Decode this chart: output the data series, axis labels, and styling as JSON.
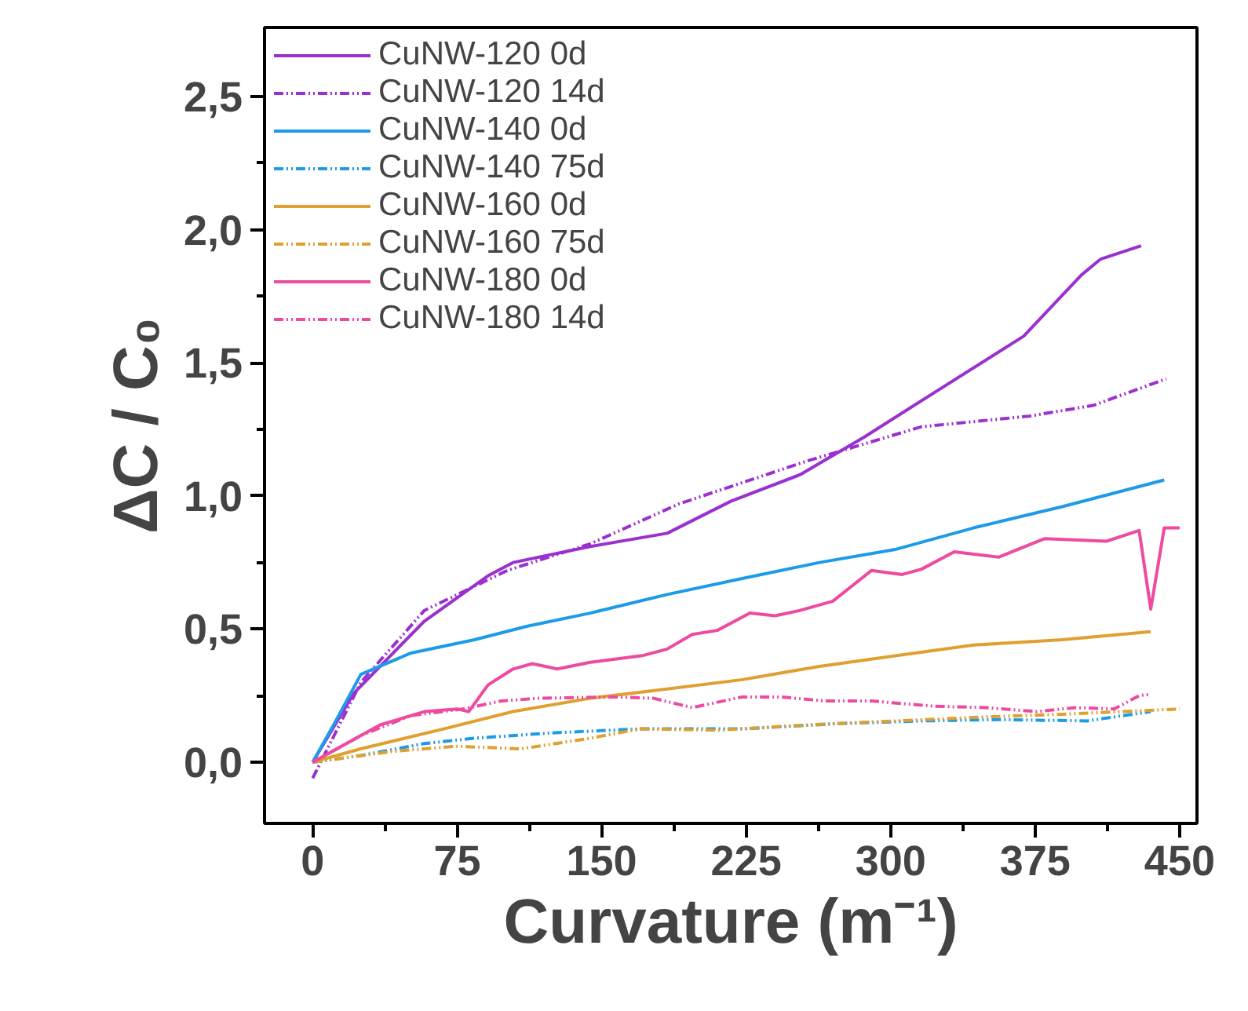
{
  "chart_data": {
    "type": "line",
    "xlabel": "Curvature (m⁻¹)",
    "ylabel": "ΔC / C₀",
    "xlim": [
      -25,
      459
    ],
    "ylim": [
      -0.23,
      2.76
    ],
    "xticks": [
      0,
      {
        "value": 37.5,
        "label": null
      },
      75,
      {
        "value": 112.5,
        "label": null
      },
      150,
      {
        "value": 187.5,
        "label": null
      },
      225,
      {
        "value": 262.5,
        "label": null
      },
      300,
      {
        "value": 337.5,
        "label": null
      },
      375,
      {
        "value": 412.5,
        "label": null
      },
      450
    ],
    "yticks": [
      {
        "value": 0,
        "label": "0,0"
      },
      {
        "value": 0.25,
        "label": null
      },
      {
        "value": 0.5,
        "label": "0,5"
      },
      {
        "value": 0.75,
        "label": null
      },
      {
        "value": 1.0,
        "label": "1,0"
      },
      {
        "value": 1.25,
        "label": null
      },
      {
        "value": 1.5,
        "label": "1,5"
      },
      {
        "value": 1.75,
        "label": null
      },
      {
        "value": 2.0,
        "label": "2,0"
      },
      {
        "value": 2.25,
        "label": null
      },
      {
        "value": 2.5,
        "label": "2,5"
      }
    ],
    "grid": false,
    "legend": "top left",
    "series": [
      {
        "name": "CuNW-120 0d",
        "color": "#9b30d0",
        "line_style": "solid",
        "x": [
          0,
          21.5,
          58,
          91,
          104,
          144,
          184,
          217,
          253,
          286,
          323,
          369,
          399,
          409,
          430
        ],
        "values": [
          0,
          0.26,
          0.53,
          0.7,
          0.75,
          0.81,
          0.86,
          0.98,
          1.08,
          1.22,
          1.39,
          1.6,
          1.83,
          1.89,
          1.94
        ]
      },
      {
        "name": "CuNW-120 14d",
        "color": "#9b30d0",
        "line_style": "dashed",
        "x": [
          0,
          25,
          58,
          101,
          144,
          190,
          256,
          316,
          372,
          405,
          443
        ],
        "values": [
          -0.06,
          0.3,
          0.57,
          0.72,
          0.82,
          0.97,
          1.13,
          1.26,
          1.3,
          1.34,
          1.44
        ]
      },
      {
        "name": "CuNW-140 0d",
        "color": "#1e9be8",
        "line_style": "solid",
        "x": [
          0,
          11.6,
          25,
          51,
          84,
          111,
          144,
          184,
          223,
          263,
          303,
          343,
          389,
          442
        ],
        "values": [
          0,
          0.15,
          0.33,
          0.41,
          0.46,
          0.51,
          0.56,
          0.63,
          0.69,
          0.75,
          0.8,
          0.88,
          0.96,
          1.06
        ]
      },
      {
        "name": "CuNW-140 75d",
        "color": "#1e9be8",
        "line_style": "dashed",
        "x": [
          0,
          25,
          58,
          84,
          124,
          170,
          223,
          273,
          316,
          356,
          402,
          435
        ],
        "values": [
          0,
          0.025,
          0.07,
          0.09,
          0.11,
          0.125,
          0.125,
          0.145,
          0.155,
          0.16,
          0.155,
          0.19
        ]
      },
      {
        "name": "CuNW-160 0d",
        "color": "#e0a030",
        "line_style": "solid",
        "x": [
          0,
          25,
          68,
          104,
          144,
          184,
          223,
          263,
          303,
          343,
          389,
          435
        ],
        "values": [
          0,
          0.05,
          0.125,
          0.19,
          0.24,
          0.275,
          0.31,
          0.36,
          0.4,
          0.44,
          0.46,
          0.49
        ]
      },
      {
        "name": "CuNW-160 75d",
        "color": "#e0a030",
        "line_style": "dashed",
        "x": [
          0,
          41,
          74,
          108,
          144,
          170,
          210,
          257,
          303,
          349,
          389,
          450
        ],
        "values": [
          0,
          0.04,
          0.06,
          0.05,
          0.09,
          0.125,
          0.12,
          0.14,
          0.155,
          0.17,
          0.18,
          0.2
        ]
      },
      {
        "name": "CuNW-180 0d",
        "color": "#ee4aa0",
        "line_style": "solid",
        "x": [
          0,
          35,
          58,
          75,
          81,
          91,
          104,
          114,
          127,
          144,
          171,
          184,
          197,
          210,
          227,
          240,
          253,
          270,
          290,
          306,
          316,
          333,
          356,
          380,
          412,
          429,
          435,
          442,
          450
        ],
        "values": [
          0,
          0.14,
          0.19,
          0.2,
          0.19,
          0.29,
          0.35,
          0.37,
          0.35,
          0.375,
          0.4,
          0.425,
          0.48,
          0.495,
          0.56,
          0.55,
          0.57,
          0.605,
          0.72,
          0.705,
          0.725,
          0.79,
          0.77,
          0.84,
          0.83,
          0.87,
          0.575,
          0.88,
          0.88
        ]
      },
      {
        "name": "CuNW-180 14d",
        "color": "#ee4aa0",
        "line_style": "dashed",
        "x": [
          0,
          25,
          51,
          78,
          98,
          117,
          157,
          177,
          197,
          223,
          243,
          266,
          290,
          323,
          349,
          376,
          396,
          416,
          429,
          435
        ],
        "values": [
          0,
          0.1,
          0.175,
          0.2,
          0.23,
          0.24,
          0.245,
          0.24,
          0.205,
          0.245,
          0.245,
          0.23,
          0.23,
          0.21,
          0.205,
          0.19,
          0.205,
          0.2,
          0.25,
          0.255
        ]
      }
    ]
  }
}
